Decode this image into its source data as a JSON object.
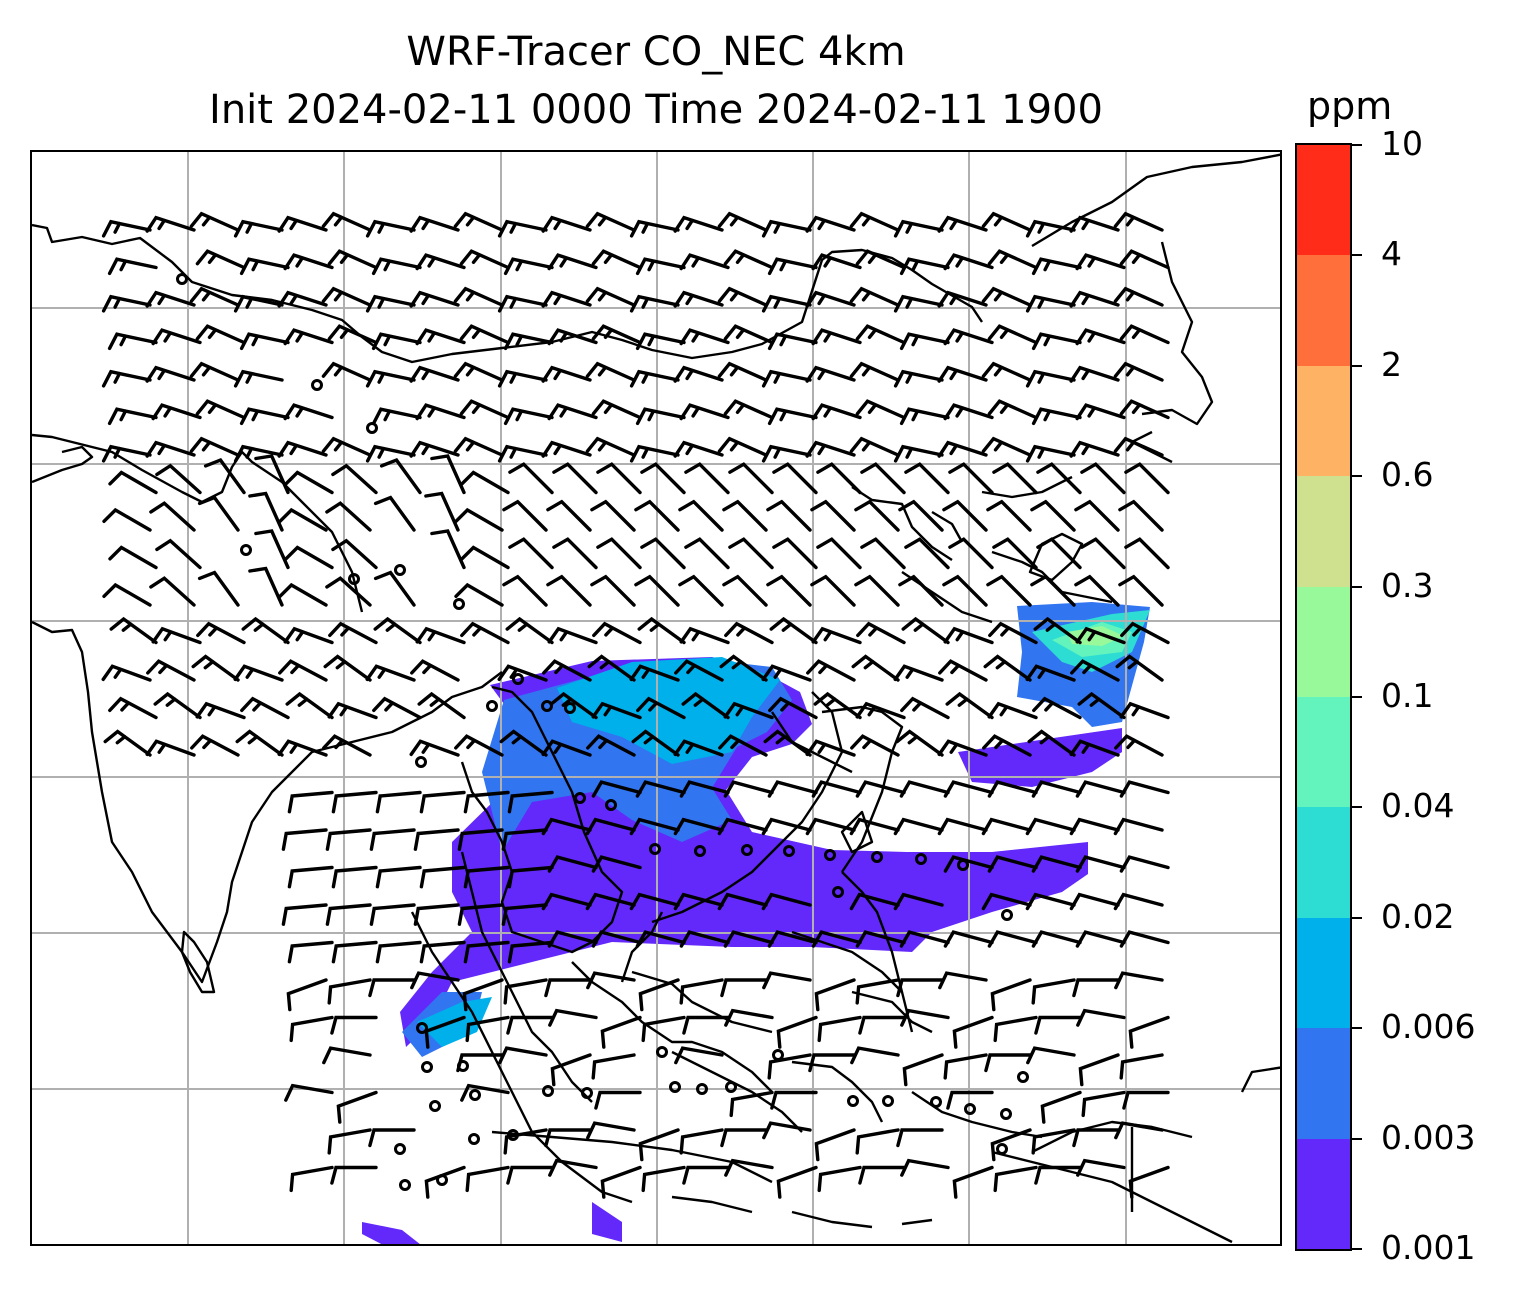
{
  "title": {
    "line1": "WRF-Tracer CO_NEC 4km",
    "line2": "Init 2024-02-11 0000 Time 2024-02-11 1900"
  },
  "colorbar": {
    "units": "ppm",
    "tick_labels": [
      "0.001",
      "0.003",
      "0.006",
      "0.02",
      "0.04",
      "0.1",
      "0.3",
      "0.6",
      "2",
      "4",
      "10"
    ],
    "colors": [
      "#6229fa",
      "#3175f1",
      "#00b0eb",
      "#2ddcd3",
      "#62f4bc",
      "#98f99b",
      "#cfe08e",
      "#fdb264",
      "#ff6f3c",
      "#ff2c19"
    ]
  },
  "map": {
    "gridlines": "on",
    "coastline_color": "#000000",
    "gridline_color": "#b0b0b0",
    "wind_barb_color": "#000000"
  }
}
